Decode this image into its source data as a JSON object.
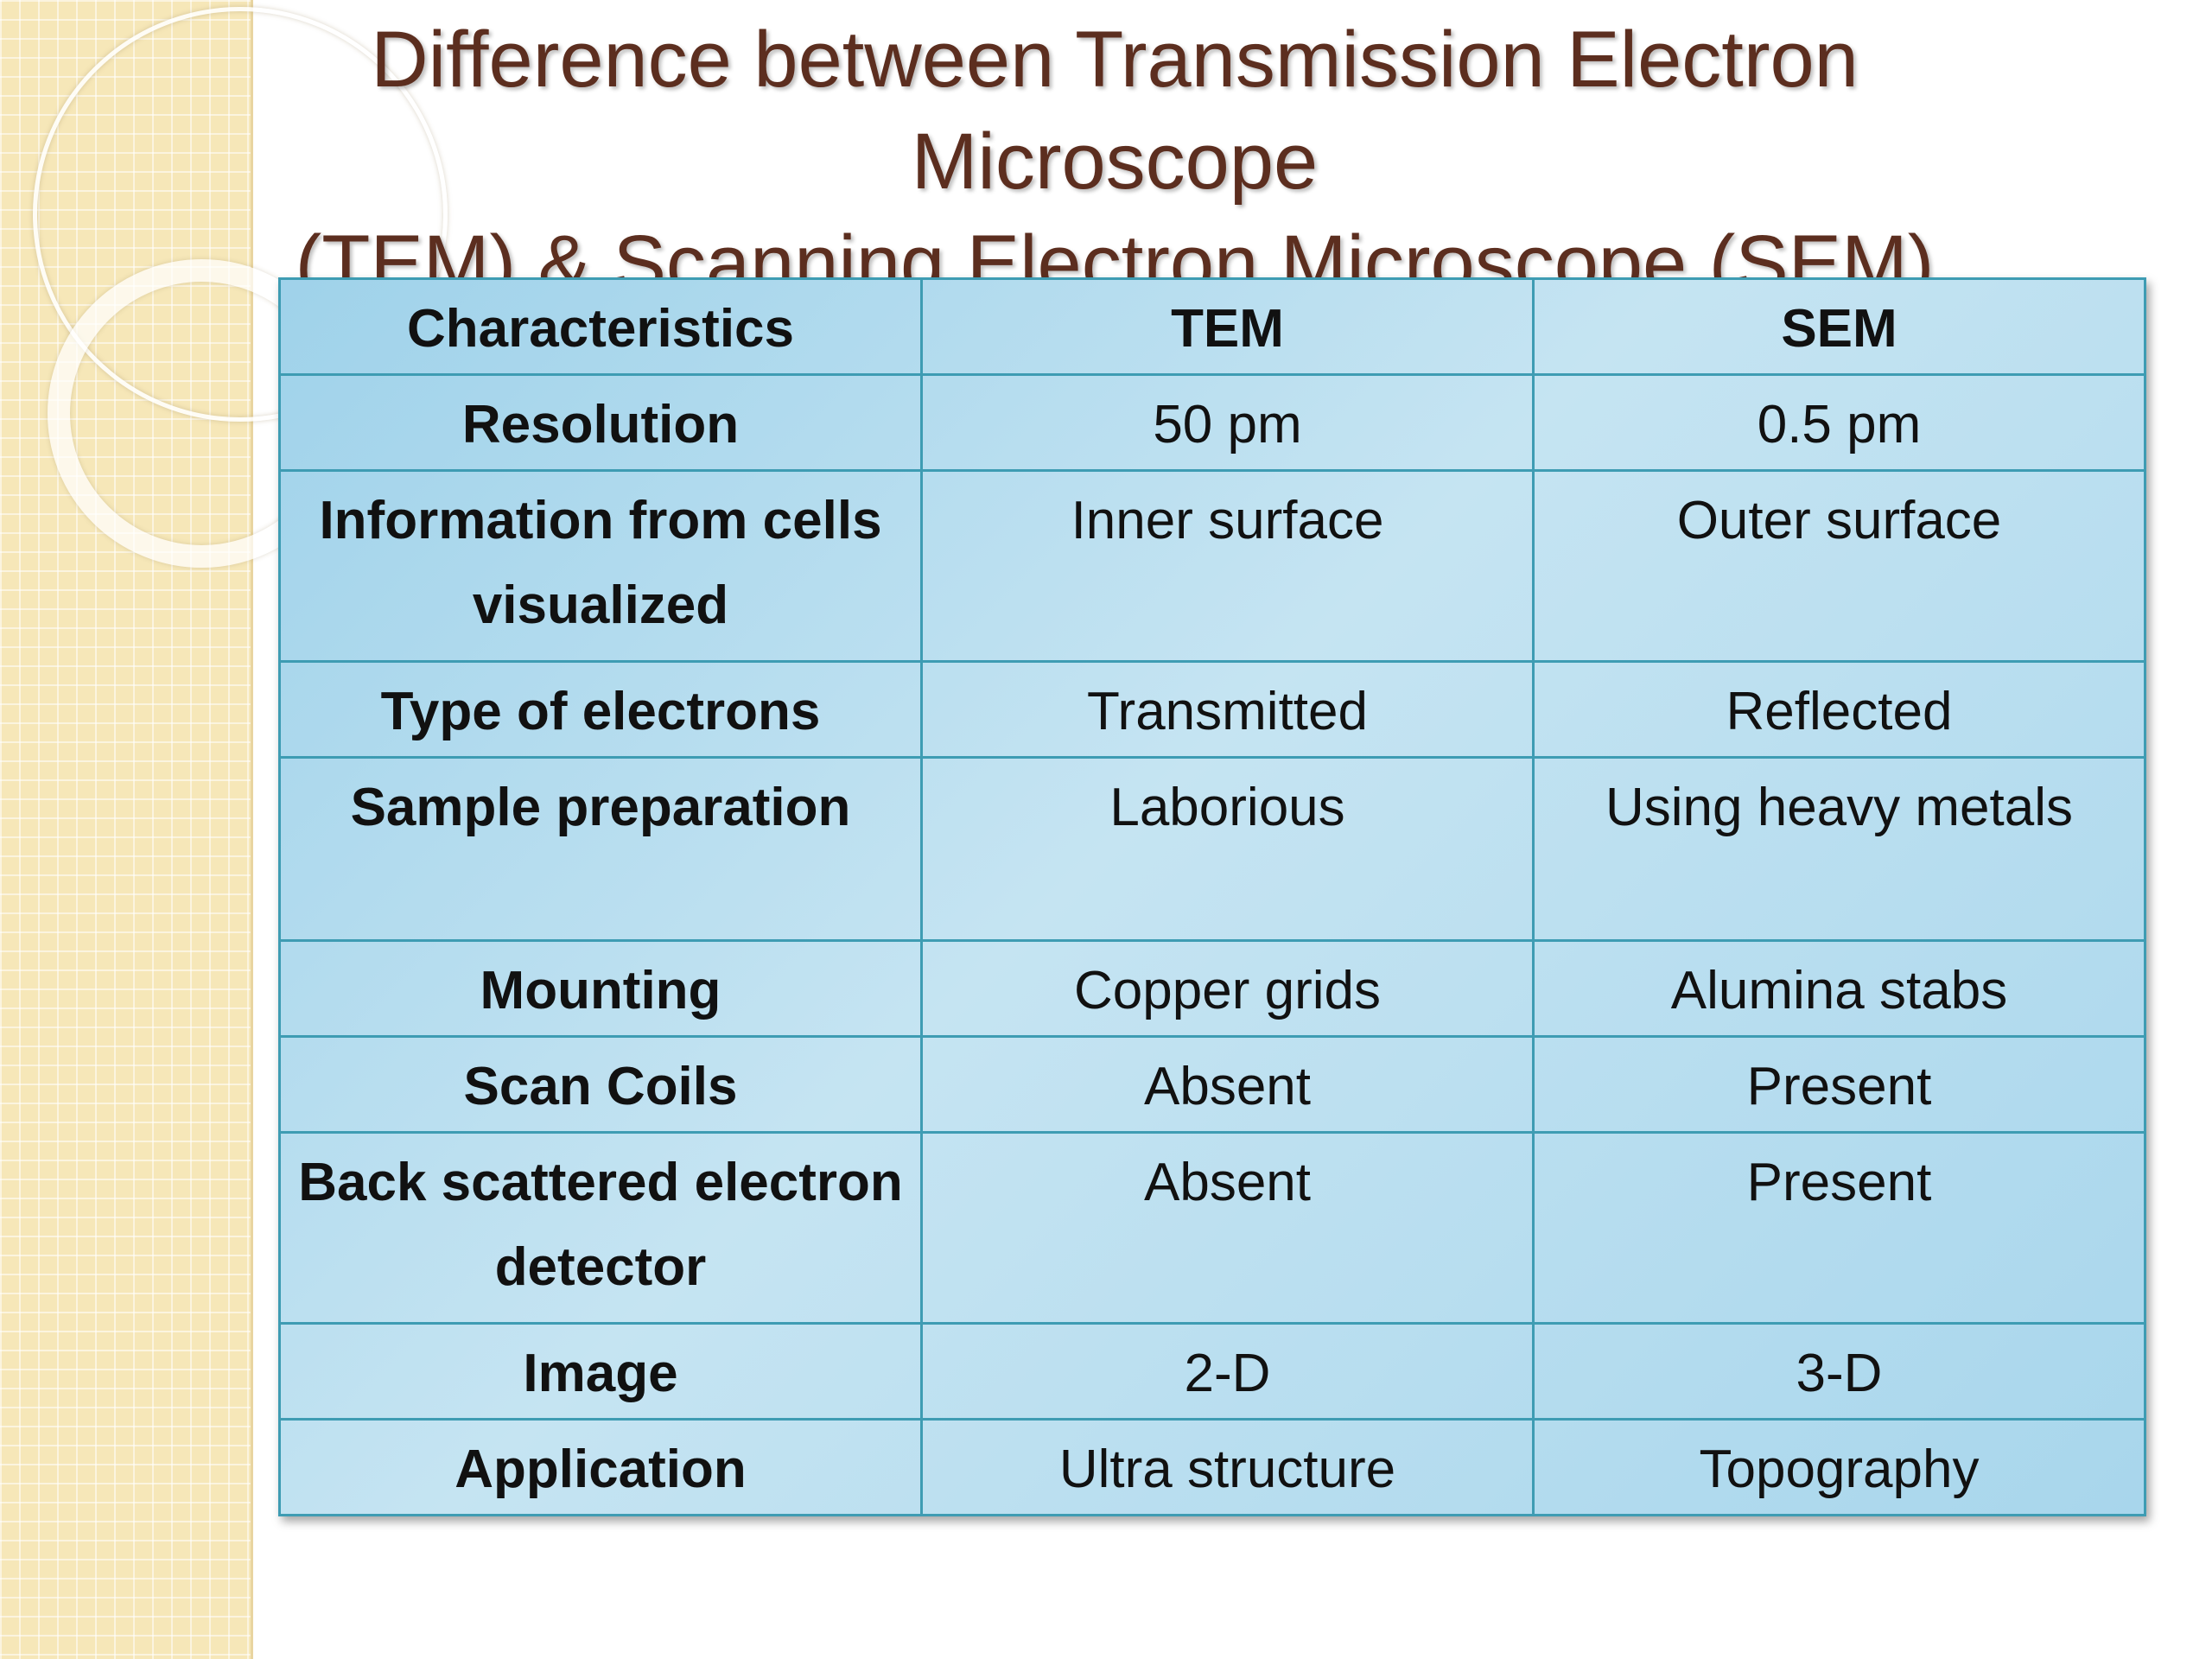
{
  "slide": {
    "title_line1": "Difference between Transmission Electron Microscope",
    "title_line2": "(TEM) & Scanning Electron Microscope (SEM)"
  },
  "table": {
    "headers": [
      "Characteristics",
      "TEM",
      "SEM"
    ],
    "rows": [
      {
        "characteristic": "Resolution",
        "tem": "50 pm",
        "sem": "0.5 pm"
      },
      {
        "characteristic": "Information from cells visualized",
        "tem": "Inner surface",
        "sem": "Outer surface"
      },
      {
        "characteristic": "Type of electrons",
        "tem": "Transmitted",
        "sem": "Reflected"
      },
      {
        "characteristic": "Sample preparation",
        "tem": "Laborious",
        "sem": "Using heavy metals"
      },
      {
        "characteristic": "Mounting",
        "tem": "Copper grids",
        "sem": "Alumina stabs"
      },
      {
        "characteristic": "Scan Coils",
        "tem": "Absent",
        "sem": "Present"
      },
      {
        "characteristic": "Back scattered electron detector",
        "tem": "Absent",
        "sem": "Present"
      },
      {
        "characteristic": "Image",
        "tem": "2-D",
        "sem": "3-D"
      },
      {
        "characteristic": "Application",
        "tem": "Ultra structure",
        "sem": "Topography"
      }
    ]
  },
  "colors": {
    "title": "#5c2e1f",
    "table_fill": "#b7dff0",
    "table_border": "#3e9cb3",
    "side_band": "#f6e7b8"
  }
}
